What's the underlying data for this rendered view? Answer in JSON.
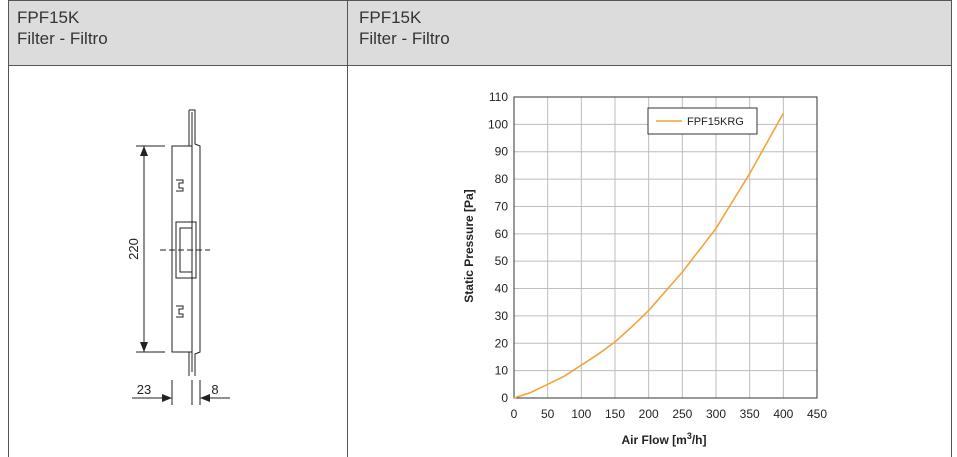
{
  "header": {
    "left": {
      "model": "FPF15K",
      "subtitle": "Filter - Filtro"
    },
    "right": {
      "model": "FPF15K",
      "subtitle": "Filter - Filtro"
    }
  },
  "drawing": {
    "dims": {
      "height": "220",
      "left_thickness": "23",
      "right_thickness": "8"
    }
  },
  "chart_data": {
    "type": "line",
    "xlabel_text": "Air Flow [m",
    "xlabel_sup": "3",
    "xlabel_end": "/h]",
    "ylabel": "Static Pressure [Pa]",
    "xlim": [
      0,
      450
    ],
    "ylim": [
      0,
      110
    ],
    "x_ticks": [
      0,
      50,
      100,
      150,
      200,
      250,
      300,
      350,
      400,
      450
    ],
    "y_ticks": [
      0,
      10,
      20,
      30,
      40,
      50,
      60,
      70,
      80,
      90,
      100,
      110
    ],
    "grid": true,
    "legend_position": "top-right",
    "series_color": "#f4a33c",
    "series": [
      {
        "name": "FPF15KRG",
        "x": [
          0,
          25,
          50,
          75,
          100,
          125,
          150,
          175,
          200,
          225,
          250,
          275,
          300,
          325,
          350,
          375,
          400
        ],
        "y": [
          0,
          2,
          5,
          8,
          12,
          16,
          20.5,
          26,
          32,
          39,
          46,
          54,
          62,
          72,
          82,
          93,
          104
        ]
      }
    ]
  }
}
